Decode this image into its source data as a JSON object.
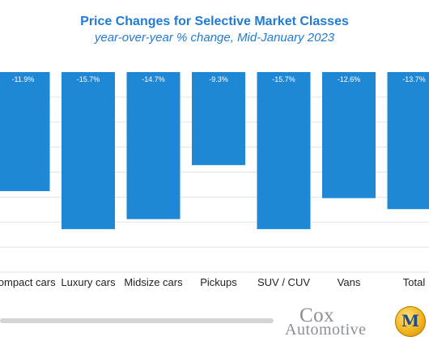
{
  "chart_data": {
    "type": "bar",
    "title": "Price Changes for Selective Market Classes",
    "subtitle": "year-over-year % change, Mid-January 2023",
    "categories": [
      "Compact cars",
      "Luxury cars",
      "Midsize cars",
      "Pickups",
      "SUV / CUV",
      "Vans",
      "Total"
    ],
    "values": [
      -11.9,
      -15.7,
      -14.7,
      -9.3,
      -15.7,
      -12.6,
      -13.7
    ],
    "value_labels": [
      "-11.9%",
      "-15.7%",
      "-14.7%",
      "-9.3%",
      "-15.7%",
      "-12.6%",
      "-13.7%"
    ],
    "ylim": [
      -20,
      0
    ],
    "grid": true,
    "bar_color": "#1f88d6"
  },
  "logos": {
    "cox_top": "Cox",
    "cox_bottom": "Automotive",
    "manheim_letter": "M"
  }
}
